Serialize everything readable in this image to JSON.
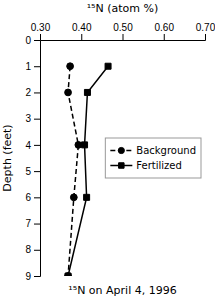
{
  "chart_data": {
    "type": "line",
    "x_label": "¹⁵N (atom %)",
    "y_label": "Depth (feet)",
    "annotations": [
      "¹⁵N on April 4, 1996"
    ],
    "xlim": [
      0.3,
      0.7
    ],
    "ylim": [
      9,
      0
    ],
    "xticks": [
      {
        "value": 0.3,
        "label": "0.30"
      },
      {
        "value": 0.4,
        "label": "0.40"
      },
      {
        "value": 0.5,
        "label": "0.50"
      },
      {
        "value": 0.6,
        "label": "0.60"
      },
      {
        "value": 0.7,
        "label": "0.70"
      }
    ],
    "yticks": [
      0,
      1,
      2,
      3,
      4,
      5,
      6,
      7,
      8,
      9
    ],
    "grid": false,
    "legend": "center right",
    "series": [
      {
        "name": "Background",
        "color": "#000000",
        "marker": "circle",
        "line_style": "dashed",
        "x": [
          0.373,
          0.368,
          0.393,
          0.382,
          0.368
        ],
        "values": [
          1,
          2,
          4,
          6,
          9
        ]
      },
      {
        "name": "Fertilized",
        "color": "#000000",
        "marker": "square",
        "line_style": "solid",
        "x": [
          0.465,
          0.415,
          0.408,
          0.413,
          0.368
        ],
        "values": [
          1,
          2,
          4,
          6,
          9
        ]
      }
    ]
  }
}
